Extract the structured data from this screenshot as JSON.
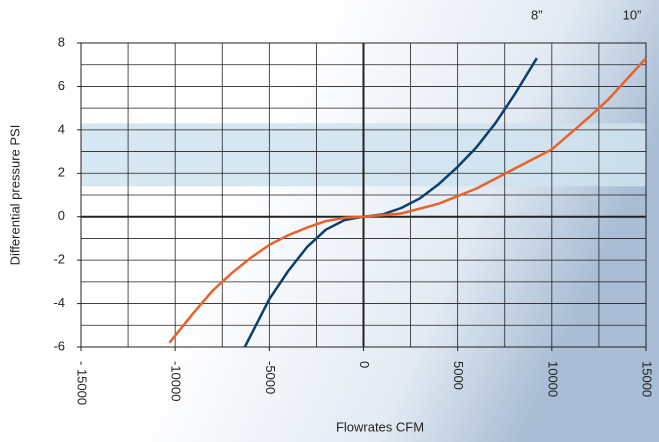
{
  "chart_data": {
    "type": "line",
    "y_label": "Differential pressure PSI",
    "x_label": "Flowrates CFM",
    "xlim": [
      -15000,
      15000
    ],
    "ylim": [
      -6,
      8
    ],
    "xticks": [
      {
        "value": -15000,
        "label": "- 15000"
      },
      -10000,
      -5000,
      0,
      5000,
      10000,
      15000
    ],
    "yticks": [
      -6,
      -4,
      -2,
      0,
      2,
      4,
      6,
      8
    ],
    "xgrid": [
      -15000,
      -12500,
      -10000,
      -7500,
      -5000,
      -2500,
      0,
      2500,
      5000,
      7500,
      10000,
      12500,
      15000
    ],
    "ygrid": [
      -6,
      -5,
      -4,
      -3,
      -2,
      -1,
      0,
      1,
      2,
      3,
      4,
      5,
      6,
      7,
      8
    ],
    "grid": true,
    "band": {
      "range": [
        1.4,
        4.3
      ],
      "color": "#cfe3ee"
    },
    "series": [
      {
        "name": "8”",
        "color": "#0c3f6e",
        "x": [
          -6300,
          -5000,
          -4000,
          -3000,
          -2000,
          -1000,
          0,
          1000,
          2000,
          3000,
          4000,
          5000,
          6000,
          7000,
          8000,
          9200
        ],
        "values": [
          -6,
          -3.8,
          -2.5,
          -1.4,
          -0.6,
          -0.15,
          0,
          0.1,
          0.4,
          0.85,
          1.5,
          2.3,
          3.2,
          4.3,
          5.6,
          7.3
        ]
      },
      {
        "name": "10”",
        "color": "#e8622a",
        "x": [
          -10300,
          -9000,
          -8000,
          -7000,
          -6000,
          -5000,
          -4000,
          -3000,
          -2000,
          -1000,
          0,
          2000,
          4000,
          6000,
          8000,
          10000,
          12000,
          13000,
          15000
        ],
        "values": [
          -5.8,
          -4.4,
          -3.4,
          -2.6,
          -1.9,
          -1.3,
          -0.85,
          -0.5,
          -0.2,
          -0.05,
          0,
          0.15,
          0.6,
          1.3,
          2.2,
          3.1,
          4.6,
          5.4,
          7.3
        ]
      }
    ]
  }
}
